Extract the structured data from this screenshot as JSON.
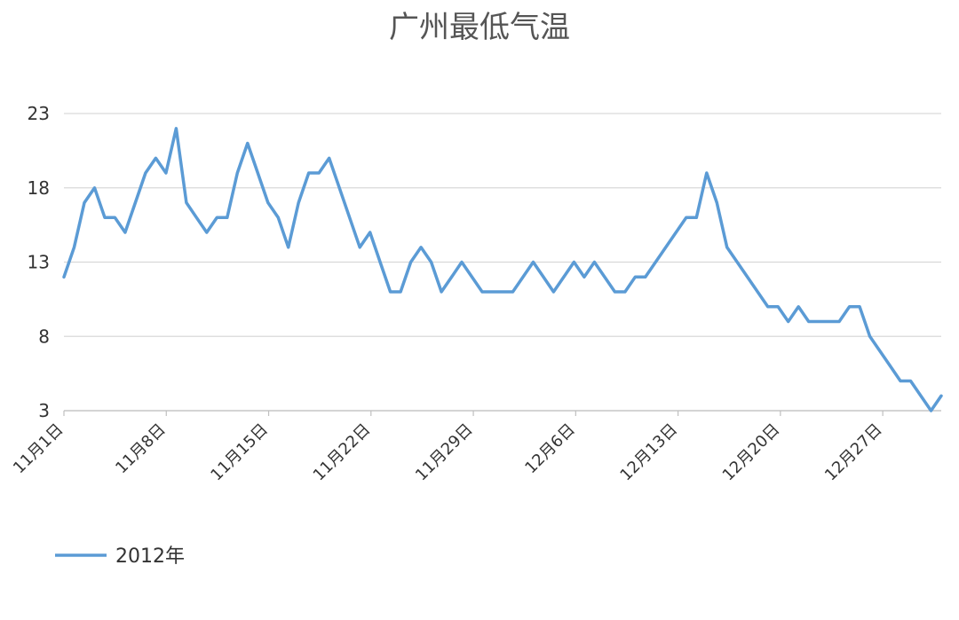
{
  "chart_data": {
    "type": "line",
    "title": "广州最低气温",
    "xlabel": "",
    "ylabel": "",
    "ylim": [
      3,
      23
    ],
    "y_ticks": [
      3,
      8,
      13,
      18,
      23
    ],
    "x_tick_labels": [
      "11月1日",
      "11月8日",
      "11月15日",
      "11月22日",
      "11月29日",
      "12月6日",
      "12月13日",
      "12月20日",
      "12月27日"
    ],
    "x_tick_positions": [
      1,
      8,
      15,
      22,
      29,
      36,
      43,
      50,
      57
    ],
    "x_range": [
      1,
      61
    ],
    "grid": "horizontal",
    "legend_position": "bottom",
    "series": [
      {
        "name": "2012年",
        "color": "#5b9bd5",
        "values": [
          12,
          14,
          17,
          18,
          16,
          16,
          15,
          17,
          19,
          20,
          19,
          22,
          17,
          16,
          15,
          16,
          16,
          19,
          21,
          19,
          17,
          16,
          14,
          17,
          19,
          19,
          20,
          18,
          16,
          14,
          15,
          13,
          11,
          11,
          13,
          14,
          13,
          11,
          12,
          13,
          12,
          11,
          11,
          11,
          11,
          12,
          13,
          12,
          11,
          12,
          13,
          12,
          13,
          12,
          11,
          11,
          12,
          12,
          13,
          14,
          15,
          16,
          16,
          19,
          17,
          14,
          13,
          12,
          11,
          10,
          10,
          9,
          10,
          9,
          9,
          9,
          9,
          10,
          10,
          8,
          7,
          6,
          5,
          5,
          4,
          3,
          4
        ]
      }
    ]
  }
}
